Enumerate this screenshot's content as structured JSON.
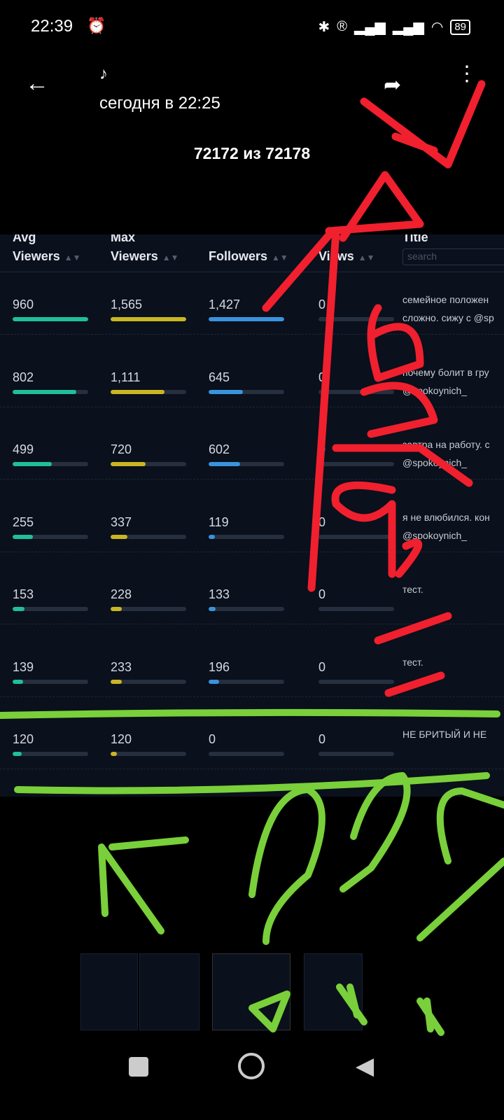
{
  "status_bar": {
    "time": "22:39",
    "battery": "89",
    "icons": [
      "alarm-icon",
      "bluetooth-icon",
      "roaming-icon",
      "signal-icon",
      "signal-icon",
      "wifi-icon",
      "battery-icon"
    ]
  },
  "header": {
    "title": "♪",
    "subtitle": "сегодня в 22:25",
    "counter": "72172 из 72178"
  },
  "table": {
    "headers": [
      {
        "top": "Avg",
        "label": "Viewers"
      },
      {
        "top": "Max",
        "label": "Viewers"
      },
      {
        "top": "",
        "label": "Followers"
      },
      {
        "top": "",
        "label": "Views"
      },
      {
        "top": "",
        "label": "Title"
      }
    ],
    "search_placeholder": "search",
    "colors": {
      "avg": "#1fbf9a",
      "max": "#c9b622",
      "followers": "#3a93dd"
    },
    "rows": [
      {
        "avg": "960",
        "avg_pct": 100,
        "max": "1,565",
        "max_pct": 100,
        "followers": "1,427",
        "fol_pct": 100,
        "views": "0",
        "title1": "семейное положен",
        "title2": "сложно. сижу с @sp"
      },
      {
        "avg": "802",
        "avg_pct": 84,
        "max": "1,111",
        "max_pct": 71,
        "followers": "645",
        "fol_pct": 45,
        "views": "0",
        "title1": "почему болит в гру",
        "title2": "@spokoynich_"
      },
      {
        "avg": "499",
        "avg_pct": 52,
        "max": "720",
        "max_pct": 46,
        "followers": "602",
        "fol_pct": 42,
        "views": "0",
        "title1": "завтра на работу. с",
        "title2": "@spokoynich_"
      },
      {
        "avg": "255",
        "avg_pct": 27,
        "max": "337",
        "max_pct": 22,
        "followers": "119",
        "fol_pct": 8,
        "views": "0",
        "title1": "я не влюбился. кон",
        "title2": "@spokoynich_"
      },
      {
        "avg": "153",
        "avg_pct": 16,
        "max": "228",
        "max_pct": 15,
        "followers": "133",
        "fol_pct": 9,
        "views": "0",
        "title1": "тест.",
        "title2": ""
      },
      {
        "avg": "139",
        "avg_pct": 14,
        "max": "233",
        "max_pct": 15,
        "followers": "196",
        "fol_pct": 14,
        "views": "0",
        "title1": "тест.",
        "title2": ""
      },
      {
        "avg": "120",
        "avg_pct": 12,
        "max": "120",
        "max_pct": 8,
        "followers": "0",
        "fol_pct": 0,
        "views": "0",
        "title1": "НЕ БРИТЫЙ И НЕ",
        "title2": ""
      }
    ]
  },
  "annotation_colors": {
    "red": "#f0202e",
    "green": "#79d03a"
  }
}
